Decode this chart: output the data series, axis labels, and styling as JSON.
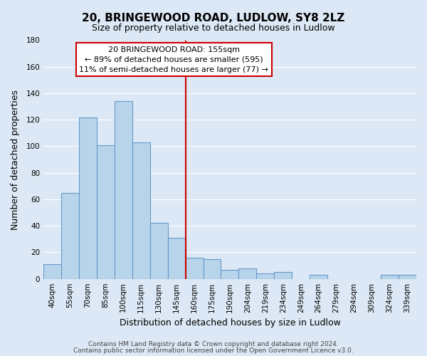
{
  "title": "20, BRINGEWOOD ROAD, LUDLOW, SY8 2LZ",
  "subtitle": "Size of property relative to detached houses in Ludlow",
  "xlabel": "Distribution of detached houses by size in Ludlow",
  "ylabel": "Number of detached properties",
  "bar_labels": [
    "40sqm",
    "55sqm",
    "70sqm",
    "85sqm",
    "100sqm",
    "115sqm",
    "130sqm",
    "145sqm",
    "160sqm",
    "175sqm",
    "190sqm",
    "204sqm",
    "219sqm",
    "234sqm",
    "249sqm",
    "264sqm",
    "279sqm",
    "294sqm",
    "309sqm",
    "324sqm",
    "339sqm"
  ],
  "bar_values": [
    11,
    65,
    122,
    101,
    134,
    103,
    42,
    31,
    16,
    15,
    7,
    8,
    4,
    5,
    0,
    3,
    0,
    0,
    0,
    3,
    3
  ],
  "bar_color": "#b8d4ea",
  "bar_edge_color": "#6699cc",
  "vline_color": "#cc0000",
  "ylim": [
    0,
    180
  ],
  "yticks": [
    0,
    20,
    40,
    60,
    80,
    100,
    120,
    140,
    160,
    180
  ],
  "annotation_text": "20 BRINGEWOOD ROAD: 155sqm\n← 89% of detached houses are smaller (595)\n11% of semi-detached houses are larger (77) →",
  "annotation_box_color": "#ffffff",
  "annotation_box_edge_color": "#cc0000",
  "footer_line1": "Contains HM Land Registry data © Crown copyright and database right 2024.",
  "footer_line2": "Contains public sector information licensed under the Open Government Licence v3.0.",
  "background_color": "#dce8f5",
  "grid_color": "#ffffff",
  "title_fontsize": 11,
  "subtitle_fontsize": 9,
  "axis_label_fontsize": 9,
  "tick_fontsize": 7.5,
  "annotation_fontsize": 8,
  "footer_fontsize": 6.5
}
